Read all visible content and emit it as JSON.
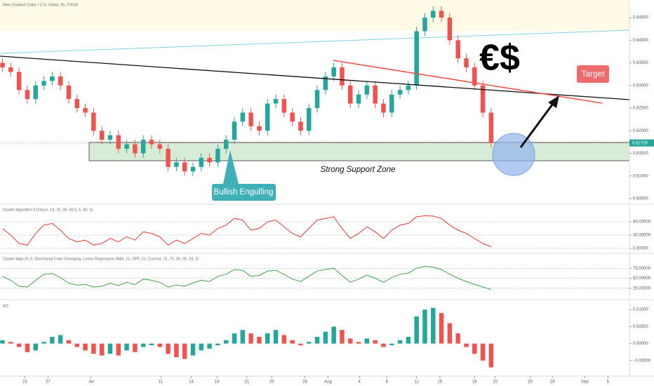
{
  "header": {
    "title": "New Zealand Dollar / U.S. Dollar, 2h, FXCM"
  },
  "annotations": {
    "symbol": "€$",
    "target": "Target",
    "pattern": "Bullish Engulfing",
    "zone": "Strong Support Zone"
  },
  "chart_data": [
    {
      "type": "candlestick",
      "up_color": "#26a69a",
      "down_color": "#ef5350",
      "xlim": [
        -0.3,
        75.7
      ],
      "ylim": [
        0.6039,
        0.6489
      ],
      "yticks": [
        {
          "value": 0.645,
          "label": "0.64500"
        },
        {
          "value": 0.64,
          "label": "0.64000"
        },
        {
          "value": 0.635,
          "label": "0.63500"
        },
        {
          "value": 0.63,
          "label": "0.63000"
        },
        {
          "value": 0.625,
          "label": "0.62500"
        },
        {
          "value": 0.62,
          "label": "0.62000"
        },
        {
          "value": 0.615,
          "label": "0.61500"
        },
        {
          "value": 0.61,
          "label": "0.61000"
        },
        {
          "value": 0.605,
          "label": "0.60500"
        }
      ],
      "xticks": [
        {
          "value": 2.7,
          "label": "23"
        },
        {
          "value": 5.5,
          "label": "27"
        },
        {
          "value": 10.7,
          "label": "Jul"
        },
        {
          "value": 19.1,
          "label": "11"
        },
        {
          "value": 22.8,
          "label": "14"
        },
        {
          "value": 25.9,
          "label": "18"
        },
        {
          "value": 29.5,
          "label": "21"
        },
        {
          "value": 32.5,
          "label": "25"
        },
        {
          "value": 36.5,
          "label": "28"
        },
        {
          "value": 39.3,
          "label": "Aug"
        },
        {
          "value": 43.1,
          "label": "4"
        },
        {
          "value": 46.4,
          "label": "8"
        },
        {
          "value": 50,
          "label": "11"
        },
        {
          "value": 52.8,
          "label": "15"
        },
        {
          "value": 57,
          "label": "18"
        },
        {
          "value": 59.5,
          "label": "22"
        },
        {
          "value": 63.7,
          "label": "25"
        },
        {
          "value": 66.4,
          "label": "29"
        },
        {
          "value": 70.3,
          "label": "Sep"
        },
        {
          "value": 73.1,
          "label": "5"
        }
      ],
      "open": [
        0.635,
        0.634,
        0.633,
        0.629,
        0.627,
        0.63,
        0.631,
        0.632,
        0.63,
        0.627,
        0.625,
        0.624,
        0.62,
        0.618,
        0.619,
        0.616,
        0.617,
        0.615,
        0.618,
        0.617,
        0.616,
        0.612,
        0.613,
        0.611,
        0.612,
        0.614,
        0.613,
        0.616,
        0.618,
        0.622,
        0.624,
        0.621,
        0.62,
        0.626,
        0.627,
        0.624,
        0.622,
        0.62,
        0.625,
        0.629,
        0.632,
        0.634,
        0.63,
        0.626,
        0.628,
        0.63,
        0.626,
        0.624,
        0.628,
        0.629,
        0.63,
        0.642,
        0.645,
        0.6465,
        0.645,
        0.64,
        0.636,
        0.634,
        0.63,
        0.624
      ],
      "high": [
        0.636,
        0.635,
        0.634,
        0.63,
        0.631,
        0.632,
        0.633,
        0.633,
        0.631,
        0.628,
        0.626,
        0.625,
        0.621,
        0.62,
        0.62,
        0.618,
        0.618,
        0.619,
        0.619,
        0.618,
        0.617,
        0.614,
        0.614,
        0.613,
        0.615,
        0.615,
        0.617,
        0.619,
        0.623,
        0.625,
        0.625,
        0.622,
        0.627,
        0.628,
        0.628,
        0.625,
        0.623,
        0.626,
        0.63,
        0.633,
        0.635,
        0.635,
        0.631,
        0.629,
        0.631,
        0.631,
        0.627,
        0.629,
        0.63,
        0.631,
        0.643,
        0.646,
        0.6475,
        0.6475,
        0.646,
        0.641,
        0.637,
        0.635,
        0.631,
        0.625
      ],
      "low": [
        0.633,
        0.632,
        0.628,
        0.626,
        0.626,
        0.629,
        0.63,
        0.629,
        0.626,
        0.624,
        0.623,
        0.619,
        0.617,
        0.617,
        0.615,
        0.615,
        0.614,
        0.614,
        0.616,
        0.615,
        0.611,
        0.611,
        0.61,
        0.61,
        0.611,
        0.612,
        0.612,
        0.615,
        0.617,
        0.621,
        0.62,
        0.619,
        0.619,
        0.625,
        0.623,
        0.621,
        0.619,
        0.619,
        0.624,
        0.628,
        0.631,
        0.629,
        0.625,
        0.625,
        0.627,
        0.625,
        0.623,
        0.623,
        0.627,
        0.628,
        0.629,
        0.641,
        0.644,
        0.644,
        0.639,
        0.635,
        0.633,
        0.629,
        0.623,
        0.61629
      ],
      "close": [
        0.634,
        0.633,
        0.629,
        0.627,
        0.63,
        0.631,
        0.632,
        0.63,
        0.627,
        0.625,
        0.624,
        0.62,
        0.618,
        0.619,
        0.616,
        0.617,
        0.615,
        0.618,
        0.617,
        0.616,
        0.612,
        0.613,
        0.611,
        0.612,
        0.614,
        0.613,
        0.616,
        0.618,
        0.622,
        0.624,
        0.621,
        0.62,
        0.626,
        0.627,
        0.624,
        0.622,
        0.62,
        0.625,
        0.629,
        0.632,
        0.634,
        0.63,
        0.626,
        0.628,
        0.63,
        0.626,
        0.624,
        0.628,
        0.629,
        0.63,
        0.642,
        0.645,
        0.6465,
        0.645,
        0.64,
        0.636,
        0.634,
        0.63,
        0.624,
        0.61729
      ]
    },
    {
      "type": "line",
      "title": "Cluster Algorithm II (Close, 14, 70, 30, 50.5, 5, 60, 5)",
      "color": "#e53935",
      "ylim": [
        -12.6,
        130.5
      ],
      "yticks": [
        {
          "value": 80,
          "label": "80.00000"
        },
        {
          "value": 40,
          "label": "40.00000"
        },
        {
          "value": 0,
          "label": "0.00000"
        }
      ],
      "values": [
        60,
        40,
        15,
        10,
        45,
        70,
        75,
        55,
        30,
        20,
        25,
        10,
        15,
        30,
        20,
        35,
        25,
        50,
        45,
        35,
        10,
        25,
        15,
        30,
        45,
        40,
        60,
        70,
        90,
        85,
        55,
        60,
        80,
        85,
        65,
        45,
        35,
        60,
        85,
        90,
        95,
        60,
        30,
        45,
        65,
        50,
        30,
        55,
        70,
        75,
        95,
        98,
        97,
        90,
        70,
        55,
        45,
        30,
        15,
        5
      ]
    },
    {
      "type": "line",
      "title": "Cluster Algo (9, 0, Directional Color Changing, Linear Regression SMA, 21, OFF, 21, Current, 75, 70, 30, 25, 34, 3)",
      "color": "#43a047",
      "ylim": [
        -1.8,
        110.7
      ],
      "yticks": [
        {
          "value": 75,
          "label": "75.00000"
        },
        {
          "value": 50,
          "label": "50.00000"
        },
        {
          "value": 25,
          "label": "25.00000"
        }
      ],
      "values": [
        55,
        45,
        30,
        28,
        45,
        60,
        62,
        52,
        38,
        33,
        35,
        28,
        30,
        38,
        32,
        40,
        34,
        48,
        45,
        40,
        28,
        33,
        30,
        38,
        45,
        42,
        55,
        60,
        72,
        70,
        55,
        57,
        68,
        70,
        60,
        48,
        42,
        55,
        68,
        72,
        75,
        57,
        40,
        48,
        58,
        50,
        40,
        52,
        60,
        63,
        75,
        80,
        78,
        72,
        60,
        50,
        42,
        35,
        28,
        22
      ]
    },
    {
      "type": "bar",
      "title": "AO",
      "up_color": "#26a69a",
      "down_color": "#ef5350",
      "ylim": [
        -0.009375,
        0.012708
      ],
      "yticks": [
        {
          "value": 0.01,
          "label": "0.01000"
        },
        {
          "value": 0.005,
          "label": "0.00500"
        },
        {
          "value": 0,
          "label": "0.00000"
        },
        {
          "value": -0.005,
          "label": "−0.00500"
        }
      ],
      "values": [
        0.001,
        0.0005,
        -0.001,
        -0.0025,
        -0.002,
        0.0005,
        0.002,
        0.0025,
        0.001,
        -0.001,
        -0.002,
        -0.003,
        -0.0035,
        -0.003,
        -0.0035,
        -0.002,
        -0.0025,
        -0.001,
        -0.0005,
        -0.001,
        -0.003,
        -0.004,
        -0.0045,
        -0.0035,
        -0.002,
        -0.0015,
        -0.0005,
        0.001,
        0.003,
        0.004,
        0.003,
        0.002,
        0.003,
        0.004,
        0.0025,
        0.001,
        -0.0005,
        0.0005,
        0.002,
        0.0035,
        0.005,
        0.004,
        0.0015,
        0.0005,
        0.0015,
        0.001,
        -0.001,
        -0.0005,
        0.001,
        0.002,
        0.008,
        0.01,
        0.0105,
        0.009,
        0.006,
        0.003,
        -0.001,
        -0.003,
        -0.005,
        -0.007
      ]
    }
  ]
}
